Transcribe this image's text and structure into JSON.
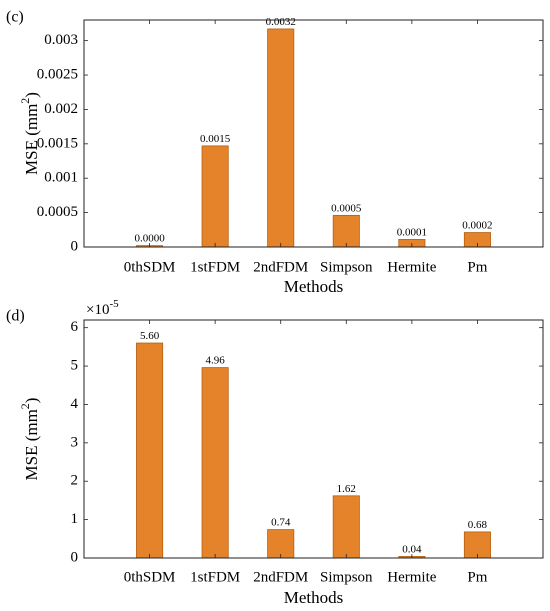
{
  "colors": {
    "bar": "#e5832b",
    "bar_edge": "#b35f12",
    "axis": "#222222"
  },
  "chart_data": [
    {
      "panel_label": "(c)",
      "type": "bar",
      "categories": [
        "0thSDM",
        "1stFDM",
        "2ndFDM",
        "Simpson",
        "Hermite",
        "Pm"
      ],
      "values": [
        2e-05,
        0.00147,
        0.00317,
        0.00046,
        0.00011,
        0.00021
      ],
      "data_labels": [
        "0.0000",
        "0.0015",
        "0.0032",
        "0.0005",
        "0.0001",
        "0.0002"
      ],
      "xlabel": "Methods",
      "ylabel_base": "MSE (mm",
      "ylabel_sup": "2",
      "ylabel_end": ")",
      "ylim": [
        0,
        0.0033
      ],
      "yticks": [
        0,
        0.0005,
        0.001,
        0.0015,
        0.002,
        0.0025,
        0.003
      ],
      "ytick_labels": [
        "0",
        "0.0005",
        "0.001",
        "0.0015",
        "0.002",
        "0.0025",
        "0.003"
      ],
      "exponent": "",
      "exponent_base": ""
    },
    {
      "panel_label": "(d)",
      "type": "bar",
      "categories": [
        "0thSDM",
        "1stFDM",
        "2ndFDM",
        "Simpson",
        "Hermite",
        "Pm"
      ],
      "values": [
        5.6,
        4.96,
        0.74,
        1.62,
        0.04,
        0.68
      ],
      "data_labels": [
        "5.60",
        "4.96",
        "0.74",
        "1.62",
        "0.04",
        "0.68"
      ],
      "xlabel": "Methods",
      "ylabel_base": "MSE (mm",
      "ylabel_sup": "2",
      "ylabel_end": ")",
      "ylim": [
        0,
        6.2
      ],
      "yticks": [
        0,
        1,
        2,
        3,
        4,
        5,
        6
      ],
      "ytick_labels": [
        "0",
        "1",
        "2",
        "3",
        "4",
        "5",
        "6"
      ],
      "exponent_base": "×10",
      "exponent": "-5"
    }
  ]
}
